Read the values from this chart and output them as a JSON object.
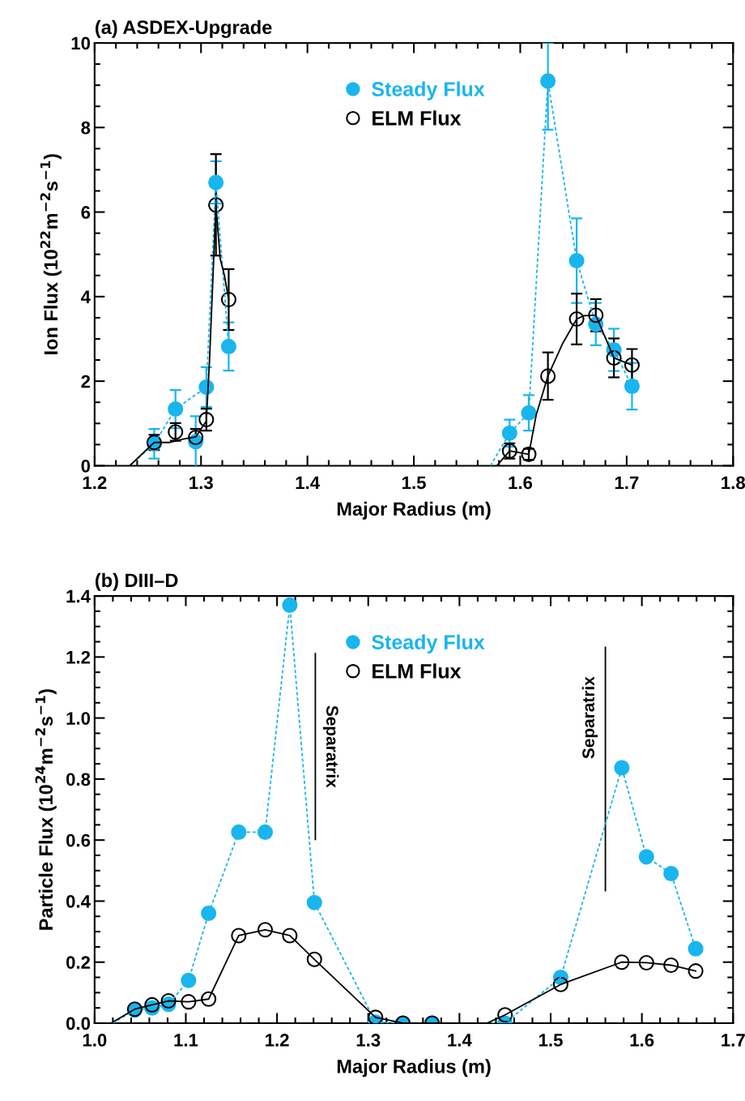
{
  "chart_data": [
    {
      "type": "scatter",
      "title": "(a) ASDEX-Upgrade",
      "xlabel": "Major Radius (m)",
      "ylabel": "Ion Flux (10$^{22}$m$^{−2}$s$^{−1}$)",
      "xlim": [
        1.2,
        1.8
      ],
      "xticks": [
        1.2,
        1.3,
        1.4,
        1.5,
        1.6,
        1.7,
        1.8
      ],
      "ylim": [
        0,
        10
      ],
      "yticks": [
        0,
        2,
        4,
        6,
        8,
        10
      ],
      "grid": false,
      "legend": "top",
      "series": [
        {
          "type": "line",
          "color": "#19b5ee",
          "line_style": "dashed",
          "marker": "none",
          "x": [
            1.233,
            1.256,
            1.276,
            1.305,
            1.314,
            1.326,
            null,
            1.572,
            1.59,
            1.608,
            1.626,
            1.653,
            1.671,
            1.688,
            1.705
          ],
          "values": [
            0,
            0.52,
            1.34,
            1.86,
            6.7,
            2.82,
            null,
            0,
            0.77,
            1.25,
            9.1,
            4.85,
            3.35,
            2.74,
            1.88
          ]
        },
        {
          "type": "line",
          "color": "#000000",
          "line_style": "solid",
          "marker": "none",
          "x": [
            1.233,
            1.256,
            1.27,
            1.283,
            1.295,
            1.305,
            1.308,
            1.314,
            1.318,
            1.322,
            1.326,
            null,
            1.578,
            1.59,
            1.608,
            1.615,
            1.626,
            1.64,
            1.653,
            1.66,
            1.671,
            1.688,
            1.705
          ],
          "values": [
            0,
            0.55,
            0.55,
            0.63,
            0.68,
            1.06,
            2.5,
            6.17,
            4.9,
            4.5,
            3.93,
            null,
            0,
            0.35,
            0.27,
            1.2,
            2.12,
            2.9,
            3.47,
            3.55,
            3.56,
            2.55,
            2.38
          ]
        },
        {
          "name": "Steady Flux",
          "color": "#19b5ee",
          "marker": "circle",
          "x": [
            1.256,
            1.276,
            1.295,
            1.305,
            1.314,
            1.326,
            1.59,
            1.608,
            1.626,
            1.653,
            1.671,
            1.688,
            1.705
          ],
          "values": [
            0.52,
            1.34,
            0.57,
            1.86,
            6.7,
            2.82,
            0.77,
            1.25,
            9.1,
            4.85,
            3.35,
            2.74,
            1.88
          ],
          "errors": [
            0.35,
            0.45,
            0.6,
            0.47,
            0.5,
            0.57,
            0.32,
            0.42,
            [
              7.95,
              10
            ],
            1.0,
            0.5,
            0.5,
            0.55
          ]
        },
        {
          "name": "ELM Flux",
          "color": "#000000",
          "marker": "circle",
          "x": [
            1.256,
            1.276,
            1.295,
            1.305,
            1.314,
            1.326,
            1.59,
            1.608,
            1.626,
            1.653,
            1.671,
            1.688,
            1.705
          ],
          "values": [
            0.55,
            0.8,
            0.67,
            1.09,
            6.17,
            3.93,
            0.35,
            0.27,
            2.12,
            3.47,
            3.56,
            2.55,
            2.38
          ],
          "errors": [
            0.18,
            0.21,
            0.2,
            0.26,
            1.2,
            0.72,
            0.18,
            0.13,
            0.56,
            0.6,
            0.38,
            0.46,
            0.38
          ]
        }
      ]
    },
    {
      "type": "scatter",
      "title": "(b) DIII–D",
      "xlabel": "Major Radius (m)",
      "ylabel": "Particle Flux (10$^{24}$m$^{−2}$s$^{−1}$)",
      "xlim": [
        1.0,
        1.7
      ],
      "xticks": [
        {
          "value": 1.0,
          "label": "1.0"
        },
        1.1,
        1.2,
        1.3,
        1.4,
        1.5,
        1.6,
        1.7
      ],
      "ylim": [
        0,
        1.4
      ],
      "yticks": [
        {
          "value": 0,
          "label": "0.0"
        },
        0.2,
        0.4,
        0.6,
        0.8,
        {
          "value": 1.0,
          "label": "1.0"
        },
        1.2,
        1.4
      ],
      "grid": false,
      "legend": "top",
      "ref_lines": [
        {
          "axis": "x",
          "value": 1.242,
          "label": "Separatrix",
          "color": "#000000"
        },
        {
          "axis": "x",
          "value": 1.56,
          "label": "Separatrix",
          "color": "#000000"
        }
      ],
      "series": [
        {
          "type": "line",
          "color": "#19b5ee",
          "line_style": "dashed",
          "marker": "none",
          "x": [
            1.02,
            1.044,
            1.063,
            1.081,
            1.103,
            1.125,
            1.158,
            1.187,
            1.214,
            1.241,
            1.308,
            1.338,
            1.37,
            1.45,
            1.511,
            1.578,
            1.605,
            1.632,
            1.659
          ],
          "values": [
            0,
            0.043,
            0.05,
            0.062,
            0.14,
            0.36,
            0.626,
            0.626,
            1.37,
            0.395,
            0.003,
            0,
            0,
            0,
            0.15,
            0.837,
            0.545,
            0.49,
            0.244
          ]
        },
        {
          "type": "line",
          "color": "#000000",
          "line_style": "solid",
          "marker": "none",
          "x": [
            1.018,
            1.044,
            1.063,
            1.081,
            1.103,
            1.125,
            1.158,
            1.187,
            1.214,
            1.241,
            1.308,
            1.338,
            1.37,
            1.43,
            1.45,
            1.511,
            1.578,
            1.605,
            1.632,
            1.659
          ],
          "values": [
            0,
            0.046,
            0.06,
            0.073,
            0.07,
            0.079,
            0.287,
            0.306,
            0.287,
            0.209,
            0.019,
            0,
            0,
            0,
            0.027,
            0.127,
            0.2,
            0.198,
            0.19,
            0.171
          ]
        },
        {
          "name": "Steady Flux",
          "color": "#19b5ee",
          "marker": "circle",
          "x": [
            1.044,
            1.063,
            1.081,
            1.103,
            1.125,
            1.158,
            1.187,
            1.214,
            1.241,
            1.308,
            1.338,
            1.37,
            1.45,
            1.511,
            1.578,
            1.605,
            1.632,
            1.659
          ],
          "values": [
            0.043,
            0.05,
            0.062,
            0.14,
            0.36,
            0.626,
            0.626,
            1.37,
            0.395,
            0.003,
            0,
            0,
            0,
            0.15,
            0.837,
            0.545,
            0.49,
            0.244
          ]
        },
        {
          "name": "ELM Flux",
          "color": "#000000",
          "marker": "circle",
          "x": [
            1.044,
            1.063,
            1.081,
            1.103,
            1.125,
            1.158,
            1.187,
            1.214,
            1.241,
            1.308,
            1.338,
            1.37,
            1.45,
            1.511,
            1.578,
            1.605,
            1.632,
            1.659
          ],
          "values": [
            0.046,
            0.06,
            0.073,
            0.07,
            0.079,
            0.287,
            0.306,
            0.287,
            0.209,
            0.019,
            0,
            0,
            0.027,
            0.127,
            0.2,
            0.198,
            0.19,
            0.171
          ]
        }
      ]
    }
  ]
}
